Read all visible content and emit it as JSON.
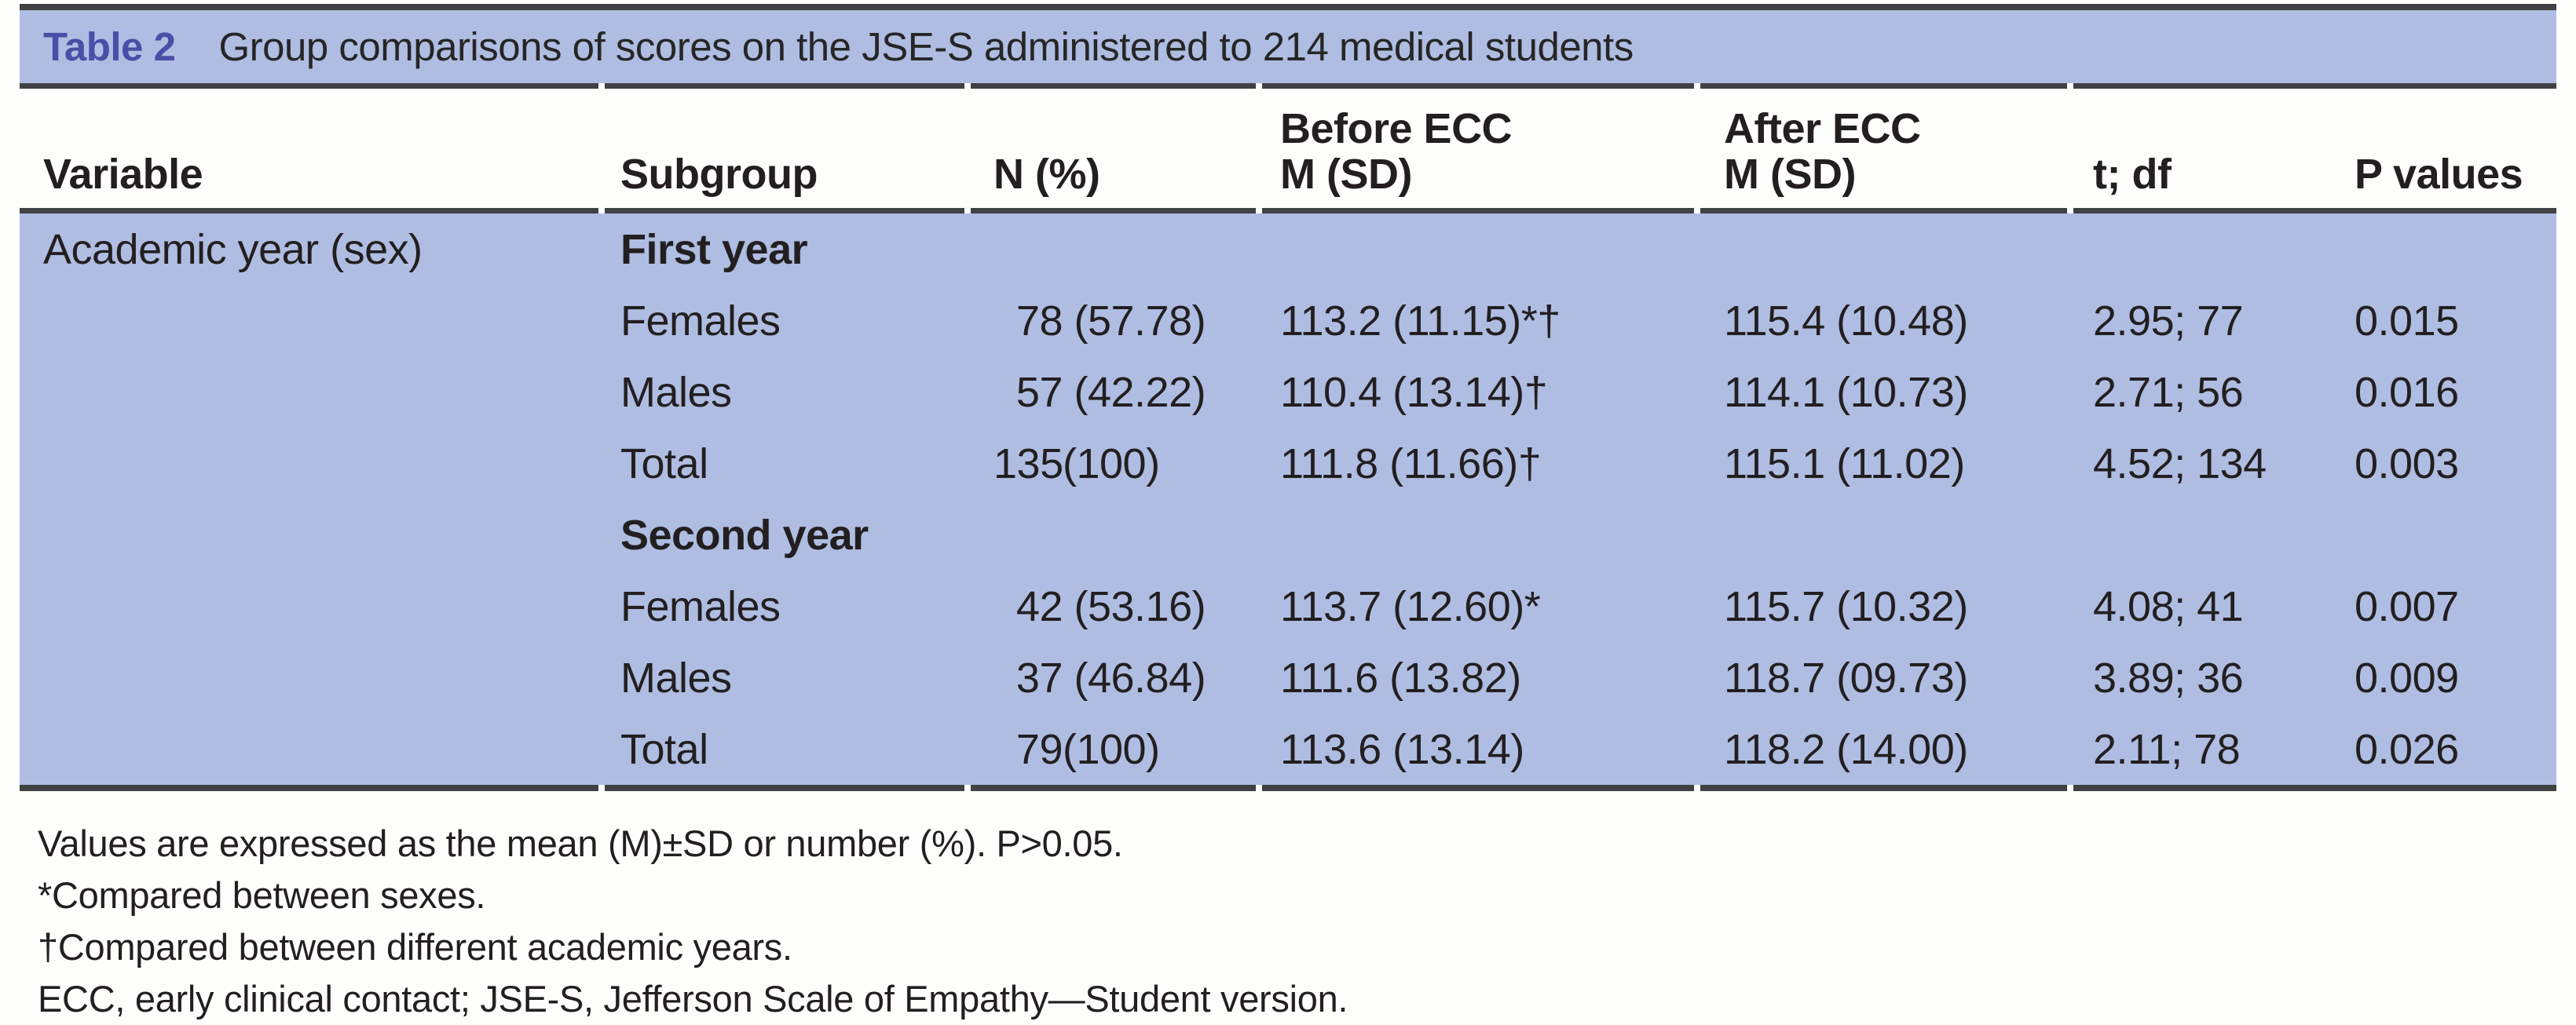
{
  "colors": {
    "blue": "#afbde2",
    "rule": "#3f4143",
    "accent": "#4a4ea7",
    "ink": "#231f20",
    "paper": "#fdfdfc"
  },
  "table": {
    "title": {
      "label": "Table 2",
      "text": "Group comparisons of scores on the JSE-S administered to 214 medical students"
    },
    "header": {
      "cols": [
        {
          "top": "",
          "bottom": "Variable"
        },
        {
          "top": "",
          "bottom": "Subgroup"
        },
        {
          "top": "",
          "bottom": "N (%)"
        },
        {
          "top": "Before ECC",
          "bottom": "M (SD)"
        },
        {
          "top": "After ECC",
          "bottom": "M (SD)"
        },
        {
          "top": "",
          "bottom": "t; df"
        },
        {
          "top": "",
          "bottom": "P values"
        }
      ]
    },
    "rows": [
      {
        "variable": "Academic year (sex)",
        "subgroup": "First year",
        "n": "",
        "before": "",
        "after": "",
        "t_df": "",
        "p": ""
      },
      {
        "variable": "",
        "subgroup": "Females",
        "n": "78 (57.78)",
        "before": "113.2 (11.15)*†",
        "after": "115.4 (10.48)",
        "t_df": "2.95; 77",
        "p": "0.015"
      },
      {
        "variable": "",
        "subgroup": "Males",
        "n": "57 (42.22)",
        "before": "110.4 (13.14)†",
        "after": "114.1 (10.73)",
        "t_df": "2.71; 56",
        "p": "0.016"
      },
      {
        "variable": "",
        "subgroup": "Total",
        "n": "135(100)",
        "before": "111.8 (11.66)†",
        "after": "115.1 (11.02)",
        "t_df": "4.52; 134",
        "p": "0.003"
      },
      {
        "variable": "",
        "subgroup": "Second year",
        "n": "",
        "before": "",
        "after": "",
        "t_df": "",
        "p": ""
      },
      {
        "variable": "",
        "subgroup": "Females",
        "n": "42 (53.16)",
        "before": "113.7 (12.60)*",
        "after": "115.7 (10.32)",
        "t_df": "4.08; 41",
        "p": "0.007"
      },
      {
        "variable": "",
        "subgroup": "Males",
        "n": "37 (46.84)",
        "before": "111.6 (13.82)",
        "after": "118.7 (09.73)",
        "t_df": "3.89; 36",
        "p": "0.009"
      },
      {
        "variable": "",
        "subgroup": "Total",
        "n": "79(100)",
        "before": "113.6 (13.14)",
        "after": "118.2 (14.00)",
        "t_df": "2.11; 78",
        "p": "0.026"
      }
    ],
    "footnotes": [
      "Values are expressed as the mean (M)±SD or number (%). P>0.05.",
      "*Compared between sexes.",
      "†Compared between different academic years.",
      "ECC, early clinical contact; JSE-S, Jefferson Scale of Empathy—Student version."
    ]
  }
}
